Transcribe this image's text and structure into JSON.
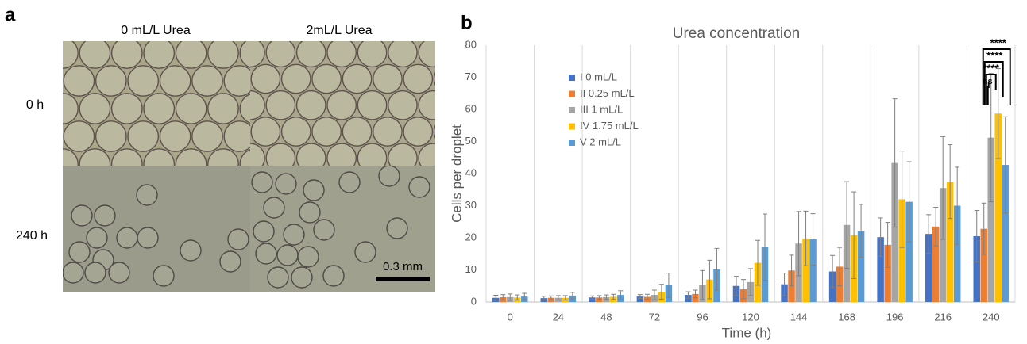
{
  "panel_a": {
    "label": "a",
    "columns": [
      "0 mL/L Urea",
      "2mL/L Urea"
    ],
    "rows": [
      "0 h",
      "240 h"
    ],
    "scale_bar": "0.3 mm"
  },
  "chart_data": {
    "type": "bar",
    "panel_label": "b",
    "title": "Urea concentration",
    "xlabel": "Time (h)",
    "ylabel": "Cells per droplet",
    "categories": [
      "0",
      "24",
      "48",
      "72",
      "96",
      "120",
      "144",
      "168",
      "196",
      "216",
      "240"
    ],
    "series": [
      {
        "name": "I 0 mL/L",
        "color": "#4472c4",
        "values": [
          1.3,
          1.2,
          1.4,
          1.7,
          2.2,
          5.0,
          5.5,
          9.5,
          20.2,
          21.2,
          20.5
        ],
        "errors": [
          0.8,
          0.6,
          0.5,
          0.6,
          1.0,
          3.0,
          3.5,
          5,
          6,
          6,
          8
        ]
      },
      {
        "name": "II 0.25 mL/L",
        "color": "#ed7d31",
        "values": [
          1.5,
          1.3,
          1.4,
          1.6,
          2.5,
          4.0,
          9.8,
          11,
          17.8,
          23.5,
          22.8
        ],
        "errors": [
          0.8,
          0.6,
          0.6,
          0.8,
          1.2,
          3,
          4.8,
          6,
          7,
          6,
          8
        ]
      },
      {
        "name": "III 1 mL/L",
        "color": "#a5a5a5",
        "values": [
          1.5,
          1.3,
          1.5,
          2.2,
          5.3,
          6.2,
          18.2,
          24,
          43.3,
          35.5,
          51.2
        ],
        "errors": [
          1,
          0.7,
          0.7,
          1.5,
          4.5,
          4.2,
          10,
          13.5,
          20,
          16,
          20
        ]
      },
      {
        "name": "IV 1.75 mL/L",
        "color": "#ffc000",
        "values": [
          1.4,
          1.3,
          1.6,
          3.2,
          7.0,
          12.2,
          19.8,
          20.8,
          32,
          37.5,
          58.7
        ],
        "errors": [
          0.8,
          0.7,
          0.8,
          2.3,
          6,
          7,
          8.5,
          13.5,
          15,
          11.5,
          14
        ]
      },
      {
        "name": "V 2 mL/L",
        "color": "#5b9bd5",
        "values": [
          1.7,
          2.0,
          2.2,
          5.2,
          10.2,
          17.1,
          19.5,
          22.2,
          31.2,
          30,
          42.7
        ],
        "errors": [
          1,
          1,
          1.3,
          3.8,
          6.5,
          10.3,
          8,
          8.2,
          12.5,
          12,
          15
        ]
      }
    ],
    "ylim": [
      0,
      80
    ],
    "yticks": [
      0,
      10,
      20,
      30,
      40,
      50,
      60,
      70,
      80
    ],
    "grid": "vertical",
    "legend": "upper left",
    "annotations": [
      "****",
      "****",
      "****",
      "ns"
    ]
  }
}
